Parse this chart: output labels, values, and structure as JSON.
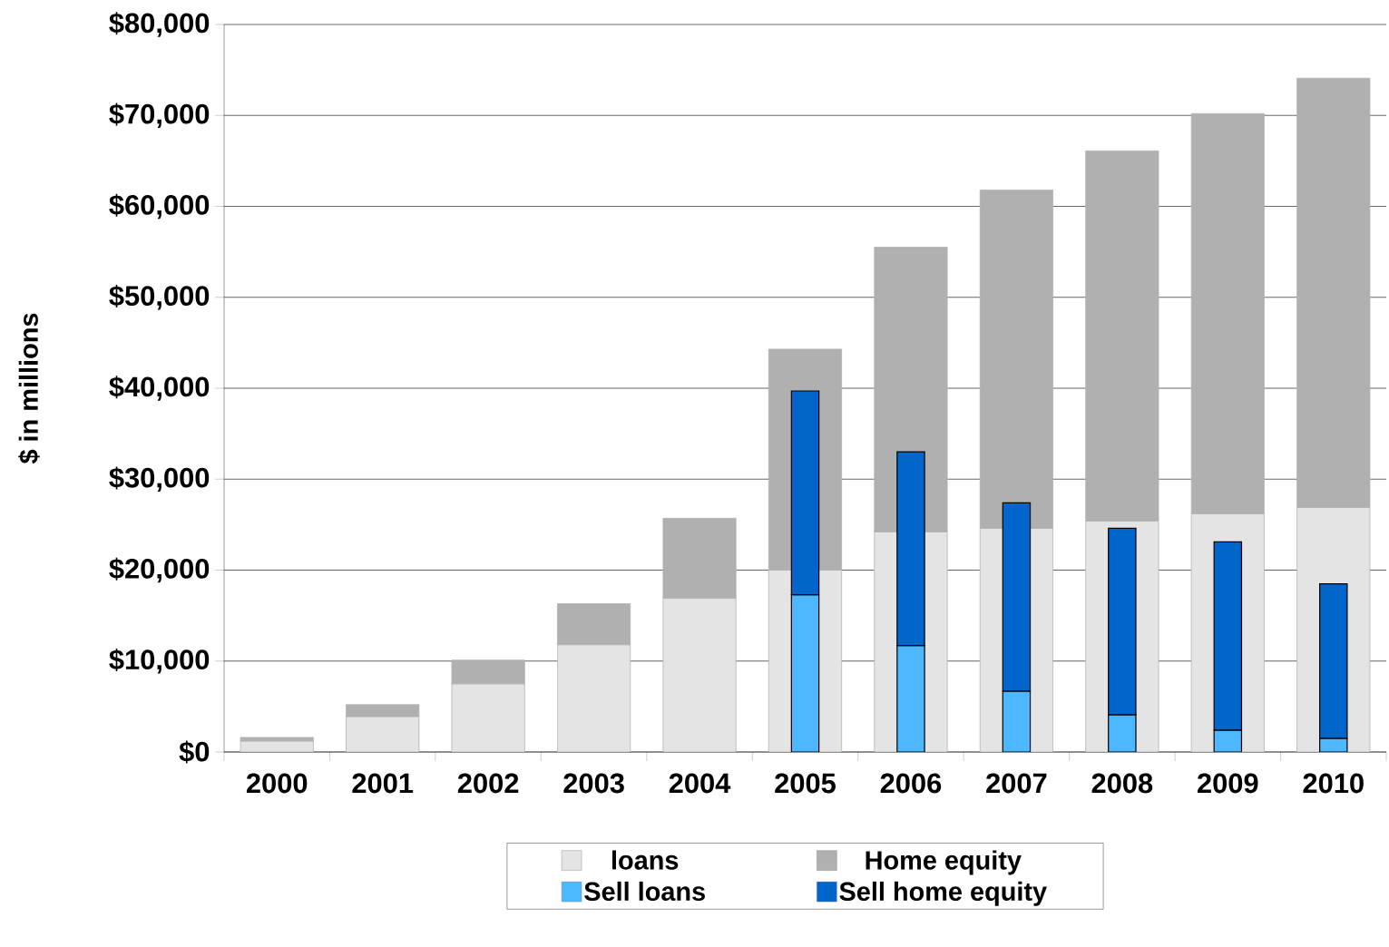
{
  "chart_data": {
    "type": "bar",
    "ylabel": "$ in millions",
    "categories": [
      "2000",
      "2001",
      "2002",
      "2003",
      "2004",
      "2005",
      "2006",
      "2007",
      "2008",
      "2009",
      "2010"
    ],
    "series": [
      {
        "name": "loans",
        "color": "#e4e4e4",
        "values": [
          1200,
          3900,
          7500,
          11800,
          16900,
          20000,
          24200,
          24600,
          25400,
          26200,
          26900
        ],
        "base": [
          0,
          0,
          0,
          0,
          0,
          0,
          0,
          0,
          0,
          0,
          0
        ]
      },
      {
        "name": "Home equity",
        "color": "#b0b0b0",
        "values": [
          400,
          1300,
          2600,
          4500,
          8800,
          24300,
          31300,
          37200,
          40700,
          44000,
          47200
        ],
        "base": [
          1200,
          3900,
          7500,
          11800,
          16900,
          20000,
          24200,
          24600,
          25400,
          26200,
          26900
        ]
      },
      {
        "name": "Sell loans",
        "color": "#4db8ff",
        "values": [
          null,
          null,
          null,
          null,
          null,
          17300,
          11700,
          6700,
          4100,
          2400,
          1500
        ],
        "base": [
          null,
          null,
          null,
          null,
          null,
          0,
          0,
          0,
          0,
          0,
          0
        ]
      },
      {
        "name": "Sell home equity",
        "color": "#0066cc",
        "values": [
          null,
          null,
          null,
          null,
          null,
          22400,
          21300,
          20700,
          20500,
          20700,
          17000
        ],
        "base": [
          null,
          null,
          null,
          null,
          null,
          17300,
          11700,
          6700,
          4100,
          2400,
          1500
        ]
      }
    ],
    "ylim": [
      0,
      80000
    ],
    "yticks": [
      {
        "value": 0,
        "label": "$0"
      },
      {
        "value": 10000,
        "label": "$10,000"
      },
      {
        "value": 20000,
        "label": "$20,000"
      },
      {
        "value": 30000,
        "label": "$30,000"
      },
      {
        "value": 40000,
        "label": "$40,000"
      },
      {
        "value": 50000,
        "label": "$50,000"
      },
      {
        "value": 60000,
        "label": "$60,000"
      },
      {
        "value": 70000,
        "label": "$70,000"
      },
      {
        "value": 80000,
        "label": "$80,000"
      }
    ],
    "grid": "y",
    "legend": "bottom"
  }
}
